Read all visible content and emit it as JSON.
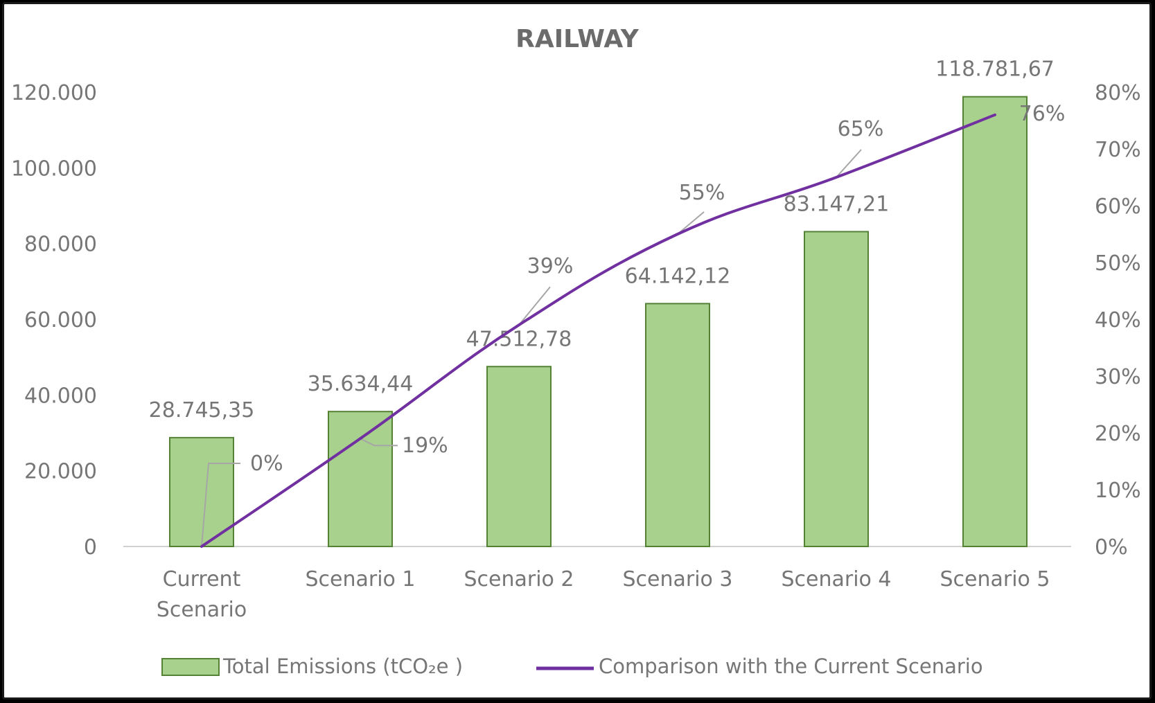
{
  "chart_data": {
    "type": "bar",
    "title": "RAILWAY",
    "categories": [
      "Current Scenario",
      "Scenario 1",
      "Scenario 2",
      "Scenario 3",
      "Scenario 4",
      "Scenario 5"
    ],
    "category_lines": [
      [
        "Current",
        "Scenario"
      ],
      [
        "Scenario 1"
      ],
      [
        "Scenario 2"
      ],
      [
        "Scenario 3"
      ],
      [
        "Scenario 4"
      ],
      [
        "Scenario 5"
      ]
    ],
    "series": [
      {
        "name": "Total Emissions (tCO₂e )",
        "type": "bar",
        "axis": "left",
        "color": "#a9d18e",
        "border_color": "#548235",
        "values": [
          28745.35,
          35634.44,
          47512.78,
          64142.12,
          83147.21,
          118781.67
        ],
        "labels": [
          "28.745,35",
          "35.634,44",
          "47.512,78",
          "64.142,12",
          "83.147,21",
          "118.781,67"
        ]
      },
      {
        "name": "Comparison with the Current Scenario",
        "type": "line",
        "axis": "right",
        "color": "#7030a0",
        "values": [
          0,
          19,
          39,
          55,
          65,
          76
        ],
        "labels": [
          "0%",
          "19%",
          "39%",
          "55%",
          "65%",
          "76%"
        ]
      }
    ],
    "y_left": {
      "min": 0,
      "max": 120000,
      "ticks": [
        "0",
        "20.000",
        "40.000",
        "60.000",
        "80.000",
        "100.000",
        "120.000"
      ]
    },
    "y_right": {
      "min": 0,
      "max": 80,
      "ticks": [
        "0%",
        "10%",
        "20%",
        "30%",
        "40%",
        "50%",
        "60%",
        "70%",
        "80%"
      ]
    },
    "grid": false,
    "legend_position": "bottom"
  }
}
